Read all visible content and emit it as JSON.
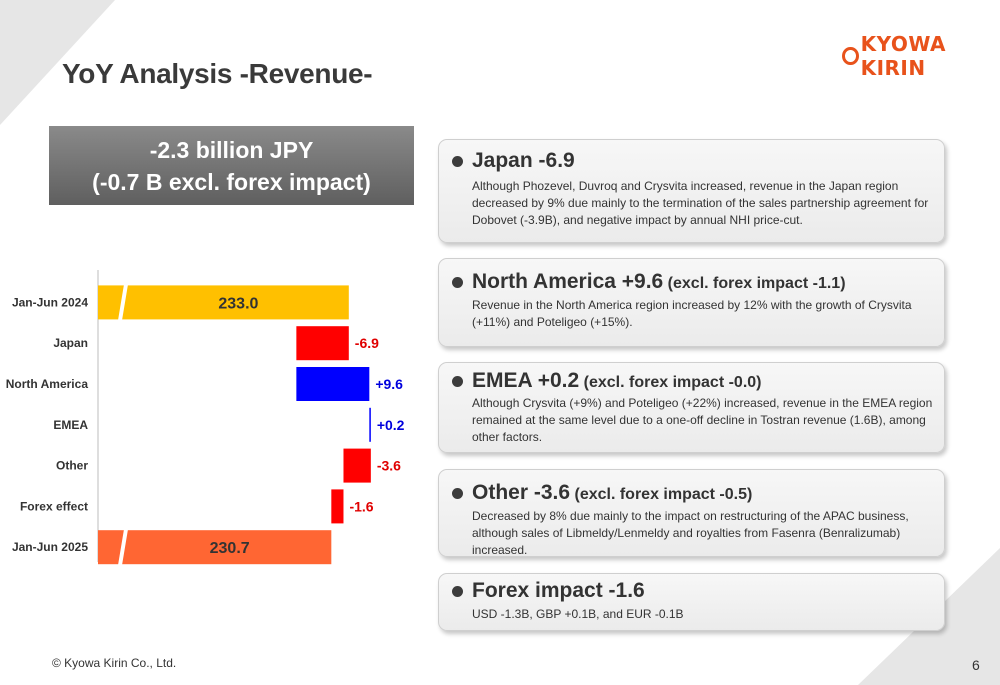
{
  "logo_text": "KYOWA KIRIN",
  "title": "YoY Analysis -Revenue-",
  "headline": {
    "line1": "-2.3 billion JPY",
    "line2": "(-0.7 B excl. forex impact)"
  },
  "chart_data": {
    "type": "bar",
    "subtype": "waterfall",
    "orientation": "horizontal",
    "categories": [
      "Jan-Jun 2024",
      "Japan",
      "North America",
      "EMEA",
      "Other",
      "Forex effect",
      "Jan-Jun 2025"
    ],
    "values": [
      233.0,
      -6.9,
      9.6,
      0.2,
      -3.6,
      -1.6,
      230.7
    ],
    "labels": [
      "233.0",
      "-6.9",
      "+9.6",
      "+0.2",
      "-3.6",
      "-1.6",
      "230.7"
    ],
    "kinds": [
      "total",
      "delta",
      "delta",
      "delta",
      "delta",
      "delta",
      "total"
    ],
    "colors": {
      "total_start": "#ffc000",
      "total_end": "#ff6633",
      "decrease": "#ff0000",
      "increase": "#0000ff"
    },
    "axis_break": true,
    "xlim": [
      200,
      245
    ],
    "grid": false,
    "legend": false
  },
  "cards": [
    {
      "head_big": "Japan -6.9",
      "head_small": "",
      "body": "Although Phozevel, Duvroq and Crysvita increased, revenue in the Japan region decreased by 9% due mainly to the termination of the sales partnership agreement for Dobovet (-3.9B), and negative impact by annual NHI price-cut."
    },
    {
      "head_big": "North America +9.6",
      "head_small": "(excl. forex impact -1.1)",
      "body": "Revenue in the North America region increased by 12% with the growth of Crysvita (+11%) and Poteligeo (+15%)."
    },
    {
      "head_big": "EMEA +0.2",
      "head_small": "(excl. forex impact -0.0)",
      "body": "Although Crysvita (+9%) and Poteligeo (+22%) increased, revenue in the EMEA region remained at the same level due to a one-off decline in Tostran revenue (1.6B), among other factors."
    },
    {
      "head_big": "Other -3.6",
      "head_small": "(excl. forex impact -0.5)",
      "body": "Decreased by 8% due mainly to the impact on restructuring of the APAC business, although sales of Libmeldy/Lenmeldy and royalties from Fasenra (Benralizumab) increased."
    },
    {
      "head_big": "Forex impact -1.6",
      "head_small": "",
      "body": "USD -1.3B,  GBP +0.1B, and EUR -0.1B"
    }
  ],
  "footer": "© Kyowa Kirin Co., Ltd.",
  "page_number": "6"
}
